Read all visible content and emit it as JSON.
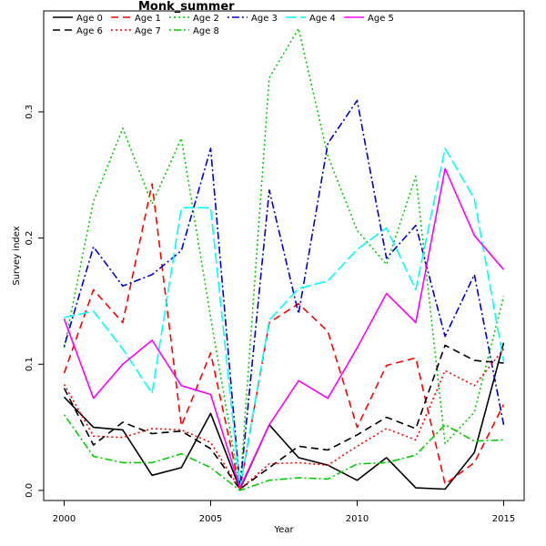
{
  "chart_data": {
    "type": "line",
    "title": "Monk_summer",
    "xlabel": "Year",
    "ylabel": "Survey index",
    "xlim": [
      1999.3,
      2015.7
    ],
    "ylim": [
      -0.008,
      0.38
    ],
    "xticks": [
      2000,
      2005,
      2010,
      2015
    ],
    "yticks": [
      0.0,
      0.1,
      0.2,
      0.3
    ],
    "ytick_labels": [
      "0.0",
      "0.1",
      "0.2",
      "0.3"
    ],
    "grid": false,
    "legend_position": "top-left",
    "x": [
      2000,
      2001,
      2002,
      2003,
      2004,
      2005,
      2006,
      2007,
      2008,
      2009,
      2010,
      2011,
      2012,
      2013,
      2014,
      2015
    ],
    "series": [
      {
        "name": "Age 0",
        "color": "#000000",
        "dash": "solid",
        "values": [
          0.074,
          0.05,
          0.048,
          0.012,
          0.018,
          0.061,
          0.001,
          0.052,
          0.026,
          0.02,
          0.008,
          0.026,
          0.002,
          0.001,
          0.03,
          0.117
        ]
      },
      {
        "name": "Age 1",
        "color": "#ff0000",
        "dash": "dashed",
        "values": [
          0.093,
          0.159,
          0.133,
          0.243,
          0.051,
          0.109,
          0.001,
          0.133,
          0.148,
          0.126,
          0.05,
          0.099,
          0.105,
          0.005,
          0.022,
          0.068
        ]
      },
      {
        "name": "Age 2",
        "color": "#00cd00",
        "dash": "dotted",
        "values": [
          0.113,
          0.229,
          0.287,
          0.227,
          0.279,
          0.137,
          0.002,
          0.327,
          0.366,
          0.265,
          0.206,
          0.179,
          0.249,
          0.037,
          0.062,
          0.154
        ]
      },
      {
        "name": "Age 3",
        "color": "#0000cd",
        "dash": "dotdash",
        "values": [
          0.114,
          0.193,
          0.162,
          0.171,
          0.19,
          0.271,
          0.002,
          0.238,
          0.14,
          0.275,
          0.309,
          0.184,
          0.21,
          0.122,
          0.171,
          0.052
        ]
      },
      {
        "name": "Age 4",
        "color": "#00ffff",
        "dash": "longdash",
        "values": [
          0.137,
          0.142,
          0.112,
          0.077,
          0.224,
          0.224,
          0.002,
          0.135,
          0.16,
          0.166,
          0.191,
          0.208,
          0.159,
          0.271,
          0.231,
          0.102
        ]
      },
      {
        "name": "Age 5",
        "color": "#ff00ff",
        "dash": "solid",
        "values": [
          0.136,
          0.073,
          0.1,
          0.119,
          0.083,
          0.076,
          0.002,
          0.052,
          0.087,
          0.073,
          0.113,
          0.156,
          0.133,
          0.255,
          0.202,
          0.175
        ]
      },
      {
        "name": "Age 6",
        "color": "#000000",
        "dash": "dashed",
        "values": [
          0.081,
          0.036,
          0.054,
          0.045,
          0.047,
          0.033,
          0.001,
          0.018,
          0.035,
          0.032,
          0.044,
          0.058,
          0.049,
          0.115,
          0.103,
          0.101
        ]
      },
      {
        "name": "Age 7",
        "color": "#ff0000",
        "dash": "dotted",
        "values": [
          0.084,
          0.043,
          0.042,
          0.049,
          0.048,
          0.038,
          0.001,
          0.021,
          0.022,
          0.02,
          0.035,
          0.049,
          0.04,
          0.095,
          0.083,
          0.112
        ]
      },
      {
        "name": "Age 8",
        "color": "#00cd00",
        "dash": "dotdash",
        "values": [
          0.06,
          0.027,
          0.022,
          0.022,
          0.029,
          0.018,
          0.0,
          0.008,
          0.01,
          0.009,
          0.021,
          0.022,
          0.028,
          0.052,
          0.039,
          0.04
        ]
      }
    ]
  }
}
